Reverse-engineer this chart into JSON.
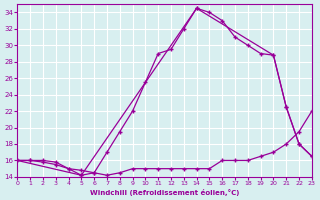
{
  "xlabel": "Windchill (Refroidissement éolien,°C)",
  "bg_color": "#d8eff0",
  "grid_color": "#ffffff",
  "line_color": "#990099",
  "xmin": 0,
  "xmax": 23,
  "ymin": 14,
  "ymax": 35,
  "yticks": [
    14,
    16,
    18,
    20,
    22,
    24,
    26,
    28,
    30,
    32,
    34
  ],
  "xticks": [
    0,
    1,
    2,
    3,
    4,
    5,
    6,
    7,
    8,
    9,
    10,
    11,
    12,
    13,
    14,
    15,
    16,
    17,
    18,
    19,
    20,
    21,
    22,
    23
  ],
  "line1_x": [
    0,
    1,
    2,
    3,
    4,
    5,
    6,
    7,
    8,
    9,
    10,
    11,
    12,
    13,
    14,
    15,
    16,
    17,
    18,
    19,
    20,
    21,
    22,
    23
  ],
  "line1_y": [
    16.0,
    16.0,
    16.0,
    15.8,
    15.0,
    14.2,
    14.5,
    17.0,
    19.5,
    22.0,
    25.5,
    29.0,
    29.5,
    32.0,
    34.5,
    34.0,
    33.0,
    31.0,
    30.0,
    29.0,
    28.8,
    22.5,
    18.0,
    16.5
  ],
  "line2_x": [
    0,
    1,
    2,
    3,
    4,
    5,
    6,
    7,
    8,
    9,
    10,
    11,
    12,
    13,
    14,
    15,
    16,
    17,
    18,
    19,
    20,
    21,
    22,
    23
  ],
  "line2_y": [
    16.0,
    16.0,
    15.8,
    15.5,
    15.0,
    14.8,
    14.5,
    14.2,
    14.5,
    15.0,
    15.0,
    15.0,
    15.0,
    15.0,
    15.0,
    15.0,
    16.0,
    16.0,
    16.0,
    16.5,
    17.0,
    18.0,
    19.5,
    22.0
  ],
  "line3_x": [
    0,
    5,
    14,
    20,
    21,
    22,
    23
  ],
  "line3_y": [
    16.0,
    14.2,
    34.5,
    28.8,
    22.5,
    18.0,
    16.5
  ]
}
